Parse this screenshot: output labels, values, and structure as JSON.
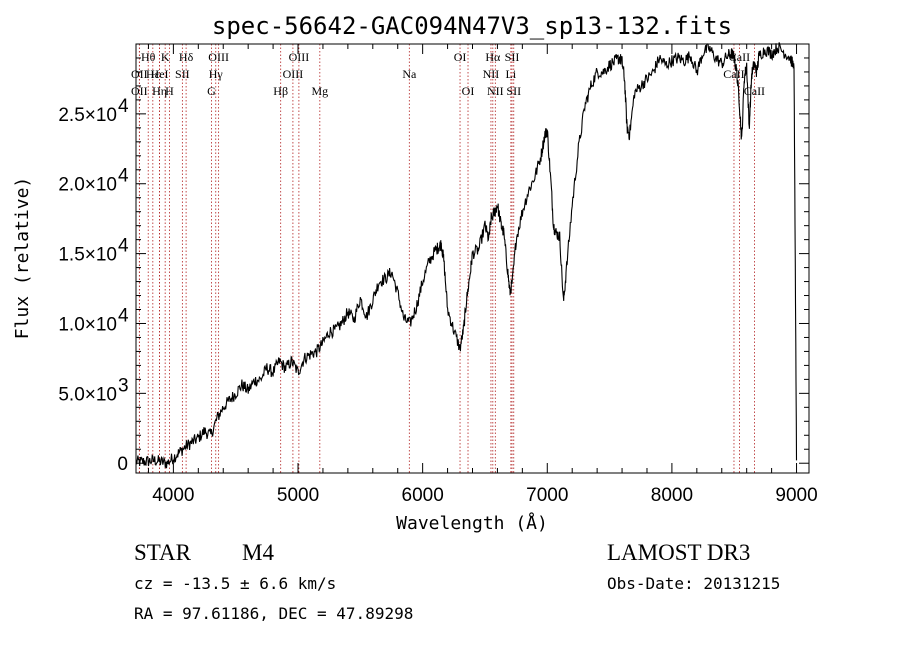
{
  "chart_data": {
    "type": "line",
    "title": "spec-56642-GAC094N47V3_sp13-132.fits",
    "xlabel": "Wavelength (Å)",
    "ylabel": "Flux (relative)",
    "xlim": [
      3700,
      9100
    ],
    "ylim": [
      -700,
      30000
    ],
    "x_ticks": [
      4000,
      5000,
      6000,
      7000,
      8000,
      9000
    ],
    "x_tick_labels": [
      "4000",
      "5000",
      "6000",
      "7000",
      "8000",
      "9000"
    ],
    "y_ticks": [
      0,
      5000,
      10000,
      15000,
      20000,
      25000
    ],
    "y_tick_mantissa": [
      "0",
      "5.0×10",
      "1.0×10",
      "1.5×10",
      "2.0×10",
      "2.5×10"
    ],
    "y_tick_exponent": [
      "",
      "3",
      "4",
      "4",
      "4",
      "4"
    ],
    "series": [
      {
        "name": "spectrum",
        "x": [
          3700,
          3750,
          3800,
          3850,
          3900,
          3950,
          4000,
          4050,
          4100,
          4150,
          4200,
          4250,
          4300,
          4350,
          4400,
          4450,
          4500,
          4550,
          4600,
          4650,
          4700,
          4750,
          4800,
          4850,
          4900,
          4950,
          5000,
          5050,
          5100,
          5150,
          5200,
          5250,
          5300,
          5350,
          5400,
          5450,
          5500,
          5550,
          5600,
          5650,
          5700,
          5750,
          5800,
          5850,
          5900,
          5950,
          6000,
          6050,
          6100,
          6130,
          6150,
          6170,
          6200,
          6250,
          6300,
          6330,
          6350,
          6380,
          6400,
          6450,
          6500,
          6530,
          6550,
          6580,
          6600,
          6630,
          6650,
          6680,
          6700,
          6720,
          6750,
          6800,
          6850,
          6900,
          6950,
          6980,
          7000,
          7030,
          7050,
          7070,
          7100,
          7130,
          7150,
          7200,
          7250,
          7300,
          7350,
          7400,
          7450,
          7500,
          7550,
          7580,
          7600,
          7620,
          7640,
          7660,
          7700,
          7750,
          7800,
          7850,
          7900,
          7950,
          8000,
          8050,
          8100,
          8150,
          8200,
          8250,
          8300,
          8350,
          8400,
          8450,
          8480,
          8500,
          8520,
          8540,
          8560,
          8580,
          8600,
          8620,
          8640,
          8660,
          8680,
          8700,
          8750,
          8800,
          8850,
          8900,
          8950,
          8980,
          9000
        ],
        "y": [
          100,
          100,
          150,
          200,
          100,
          0,
          400,
          800,
          1200,
          1500,
          1800,
          2300,
          2000,
          3200,
          4000,
          4500,
          5000,
          5600,
          5200,
          5900,
          6000,
          6800,
          6500,
          7300,
          6800,
          7300,
          6500,
          7500,
          7800,
          8000,
          8600,
          9400,
          9500,
          10000,
          10800,
          10300,
          11800,
          10500,
          11700,
          13000,
          13200,
          13700,
          12200,
          10300,
          10000,
          11200,
          13000,
          14400,
          15200,
          15500,
          15700,
          14500,
          11000,
          9500,
          8200,
          9700,
          11500,
          13500,
          15000,
          15300,
          17000,
          16000,
          17500,
          18000,
          18500,
          17000,
          16500,
          14000,
          12200,
          13000,
          16000,
          18000,
          19500,
          20500,
          22000,
          23500,
          23800,
          20000,
          17000,
          16500,
          16200,
          11500,
          13500,
          18500,
          22500,
          25500,
          27000,
          28000,
          28000,
          28500,
          28800,
          29000,
          28700,
          27500,
          24000,
          23500,
          26500,
          27000,
          27500,
          28000,
          29000,
          28500,
          28800,
          29000,
          28800,
          29200,
          28000,
          29400,
          29700,
          29000,
          28600,
          29200,
          29300,
          29000,
          28000,
          26000,
          23000,
          27500,
          28500,
          24000,
          27800,
          28600,
          28000,
          29200,
          29600,
          29300,
          29800,
          29400,
          29000,
          28300,
          200
        ]
      }
    ],
    "spectral_lines": [
      {
        "label": "Hθ",
        "x": 3798,
        "row": 0
      },
      {
        "label": "K",
        "x": 3934,
        "row": 0
      },
      {
        "label": "Hδ",
        "x": 4102,
        "row": 0
      },
      {
        "label": "OIII",
        "x": 4363,
        "row": 0
      },
      {
        "label": "OIII",
        "x": 5007,
        "row": 0
      },
      {
        "label": "OI",
        "x": 6300,
        "row": 0
      },
      {
        "label": "Hα",
        "x": 6563,
        "row": 0
      },
      {
        "label": "SII",
        "x": 6717,
        "row": 0
      },
      {
        "label": "CaII",
        "x": 8542,
        "row": 0
      },
      {
        "label": "OII",
        "x": 3727,
        "row": 1
      },
      {
        "label": "Hε",
        "x": 3835,
        "row": 1
      },
      {
        "label": "HeI",
        "x": 3889,
        "row": 1
      },
      {
        "label": "SII",
        "x": 4072,
        "row": 1
      },
      {
        "label": "Hγ",
        "x": 4340,
        "row": 1
      },
      {
        "label": "OIII",
        "x": 4959,
        "row": 1
      },
      {
        "label": "Na",
        "x": 5893,
        "row": 1
      },
      {
        "label": "NII",
        "x": 6548,
        "row": 1
      },
      {
        "label": "Li",
        "x": 6708,
        "row": 1
      },
      {
        "label": "CaII",
        "x": 8498,
        "row": 1
      },
      {
        "label": "OII",
        "x": 3727,
        "row": 2
      },
      {
        "label": "Hη",
        "x": 3889,
        "row": 2
      },
      {
        "label": "H",
        "x": 3968,
        "row": 2
      },
      {
        "label": "G",
        "x": 4305,
        "row": 2
      },
      {
        "label": "Hβ",
        "x": 4861,
        "row": 2
      },
      {
        "label": "Mg",
        "x": 5175,
        "row": 2
      },
      {
        "label": "OI",
        "x": 6364,
        "row": 2
      },
      {
        "label": "NII",
        "x": 6583,
        "row": 2
      },
      {
        "label": "SII",
        "x": 6731,
        "row": 2
      },
      {
        "label": "CaII",
        "x": 8662,
        "row": 2
      }
    ]
  },
  "info": {
    "object_class": "STAR",
    "subclass": "M4",
    "survey": "LAMOST DR3",
    "cz_line": "cz = -13.5 ± 6.6 km/s",
    "obs_date": "Obs-Date: 20131215",
    "coords": "RA =  97.61186, DEC =  47.89298"
  },
  "colors": {
    "axis": "#000000",
    "spectrum": "#000000",
    "line_marker": "#b22222"
  }
}
